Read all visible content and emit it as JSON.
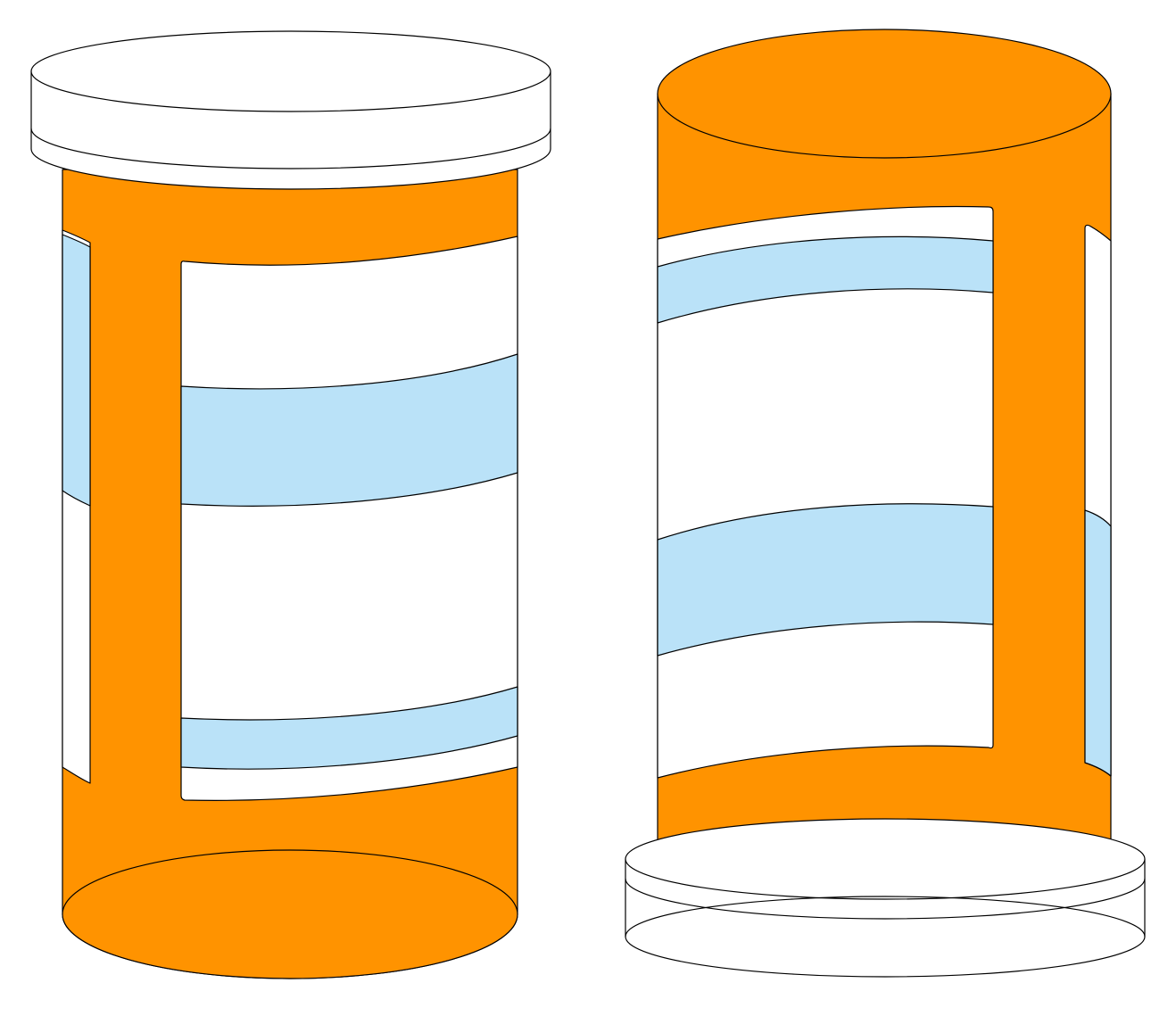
{
  "palette": {
    "bottle": "#FF9300",
    "label": "#FFFFFF",
    "band": "#BAE2F8",
    "cap": "#FFFFFF",
    "outline": "#000000",
    "background": "#FFFFFF"
  },
  "objects": [
    {
      "name": "pill-bottle-upright",
      "orientation": "cap-up"
    },
    {
      "name": "pill-bottle-inverted",
      "orientation": "cap-down"
    }
  ]
}
